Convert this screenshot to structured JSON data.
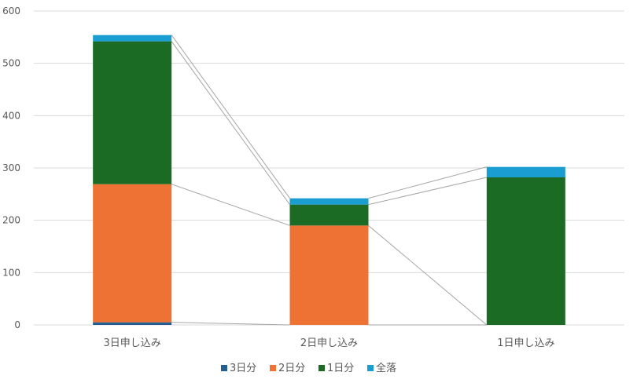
{
  "chart_data": {
    "type": "bar",
    "stacked": true,
    "title": "",
    "xlabel": "",
    "ylabel": "",
    "ylim": [
      0,
      600
    ],
    "yticks": [
      0,
      100,
      200,
      300,
      400,
      500,
      600
    ],
    "grid": true,
    "legend_position": "bottom",
    "series_lines": true,
    "categories": [
      "3日申し込み",
      "2日申し込み",
      "1日申し込み"
    ],
    "series": [
      {
        "name": "3日分",
        "color": "#255E91",
        "values": [
          5,
          0,
          0
        ]
      },
      {
        "name": "2日分",
        "color": "#ED7233",
        "values": [
          264,
          190,
          0
        ]
      },
      {
        "name": "1日分",
        "color": "#1B6B25",
        "values": [
          273,
          40,
          282
        ]
      },
      {
        "name": "全落",
        "color": "#1A9DD1",
        "values": [
          12,
          12,
          20
        ]
      }
    ]
  }
}
